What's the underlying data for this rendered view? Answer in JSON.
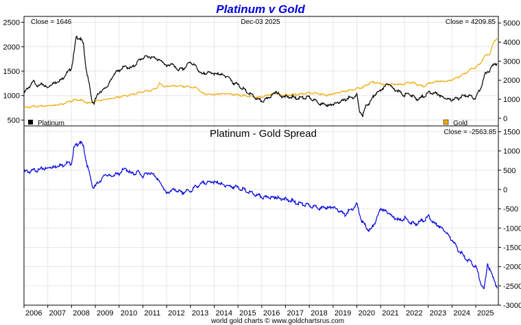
{
  "chart_data": [
    {
      "type": "line",
      "title": "Platinum v Gold",
      "date_label": "Dec-03  2025",
      "left_axis_ticks": [
        2500,
        2000,
        1500,
        1000,
        500
      ],
      "left_ylim": [
        380,
        2620
      ],
      "right_axis_ticks": [
        5000,
        4000,
        3000,
        2000,
        1000,
        0
      ],
      "right_ylim": [
        -400,
        5350
      ],
      "x_ticks": [
        "2006",
        "2007",
        "2008",
        "2009",
        "2010",
        "2011",
        "2012",
        "2013",
        "2014",
        "2015",
        "2016",
        "2017",
        "2018",
        "2019",
        "2020",
        "2021",
        "2022",
        "2023",
        "2024",
        "2025"
      ],
      "xlim": [
        2006.0,
        2025.95
      ],
      "series": [
        {
          "name": "Platinum",
          "axis": "left",
          "color": "#000000",
          "close_label": "Close = 1646",
          "x": [
            2006.0,
            2006.2,
            2006.4,
            2006.6,
            2006.8,
            2007.0,
            2007.2,
            2007.5,
            2007.8,
            2008.0,
            2008.1,
            2008.2,
            2008.35,
            2008.5,
            2008.6,
            2008.75,
            2008.85,
            2008.95,
            2009.0,
            2009.2,
            2009.5,
            2009.8,
            2010.0,
            2010.3,
            2010.5,
            2010.8,
            2011.0,
            2011.3,
            2011.6,
            2011.8,
            2012.0,
            2012.2,
            2012.5,
            2012.8,
            2013.0,
            2013.3,
            2013.5,
            2013.7,
            2014.0,
            2014.3,
            2014.6,
            2014.8,
            2015.0,
            2015.3,
            2015.6,
            2015.9,
            2016.0,
            2016.3,
            2016.6,
            2016.8,
            2017.0,
            2017.5,
            2018.0,
            2018.5,
            2018.8,
            2019.0,
            2019.3,
            2019.6,
            2019.8,
            2020.0,
            2020.1,
            2020.2,
            2020.25,
            2020.4,
            2020.6,
            2020.8,
            2021.0,
            2021.15,
            2021.3,
            2021.6,
            2021.8,
            2022.0,
            2022.2,
            2022.4,
            2022.6,
            2022.8,
            2023.0,
            2023.3,
            2023.6,
            2023.8,
            2024.0,
            2024.3,
            2024.6,
            2024.8,
            2025.0,
            2025.2,
            2025.4,
            2025.6,
            2025.75,
            2025.9
          ],
          "y": [
            1040,
            1180,
            1280,
            1200,
            1230,
            1160,
            1250,
            1300,
            1450,
            1580,
            1850,
            2200,
            2180,
            2050,
            1600,
            1200,
            900,
            850,
            930,
            1080,
            1180,
            1450,
            1520,
            1600,
            1550,
            1700,
            1780,
            1800,
            1750,
            1700,
            1600,
            1650,
            1520,
            1580,
            1700,
            1550,
            1420,
            1480,
            1450,
            1430,
            1380,
            1260,
            1220,
            1100,
            1000,
            900,
            880,
            960,
            1080,
            990,
            980,
            950,
            960,
            830,
            800,
            820,
            870,
            940,
            960,
            1000,
            700,
            640,
            600,
            800,
            900,
            1050,
            1100,
            1180,
            1250,
            1120,
            1080,
            1000,
            1050,
            960,
            930,
            980,
            1060,
            1050,
            980,
            930,
            920,
            950,
            1010,
            970,
            950,
            1150,
            1450,
            1530,
            1650,
            1646
          ]
        },
        {
          "name": "Gold",
          "axis": "right",
          "color": "#f0a800",
          "close_label": "Close = 4209.85",
          "x": [
            2006.0,
            2006.4,
            2006.8,
            2007.2,
            2007.6,
            2008.0,
            2008.3,
            2008.6,
            2008.8,
            2009.0,
            2009.5,
            2010.0,
            2010.5,
            2011.0,
            2011.3,
            2011.6,
            2011.7,
            2011.9,
            2012.2,
            2012.6,
            2013.0,
            2013.3,
            2013.5,
            2013.8,
            2014.0,
            2014.5,
            2015.0,
            2015.5,
            2015.9,
            2016.2,
            2016.6,
            2016.9,
            2017.2,
            2017.7,
            2018.0,
            2018.4,
            2018.7,
            2019.0,
            2019.5,
            2019.8,
            2020.0,
            2020.3,
            2020.6,
            2020.9,
            2021.2,
            2021.5,
            2021.8,
            2022.0,
            2022.2,
            2022.4,
            2022.8,
            2023.0,
            2023.4,
            2023.8,
            2024.0,
            2024.3,
            2024.6,
            2024.9,
            2025.0,
            2025.2,
            2025.4,
            2025.6,
            2025.75,
            2025.9
          ],
          "y": [
            550,
            620,
            640,
            680,
            750,
            920,
            980,
            850,
            780,
            900,
            1000,
            1120,
            1230,
            1400,
            1450,
            1600,
            1850,
            1650,
            1700,
            1680,
            1650,
            1580,
            1300,
            1250,
            1250,
            1300,
            1220,
            1150,
            1080,
            1200,
            1330,
            1200,
            1230,
            1280,
            1330,
            1300,
            1200,
            1280,
            1420,
            1500,
            1550,
            1650,
            1900,
            1850,
            1750,
            1800,
            1780,
            1800,
            1900,
            1850,
            1660,
            1820,
            1950,
            1950,
            2030,
            2180,
            2400,
            2650,
            2650,
            2900,
            3300,
            3400,
            4000,
            4209.85
          ]
        }
      ]
    },
    {
      "type": "line",
      "title": "Platinum  -  Gold Spread",
      "close_label": "Close = -2563.85",
      "right_axis_ticks": [
        1500,
        1000,
        500,
        0,
        -500,
        -1000,
        -1500,
        -2000,
        -2500,
        -3000
      ],
      "ylim": [
        -3000,
        1650
      ],
      "xlim": [
        2006.0,
        2025.95
      ],
      "series": [
        {
          "name": "Spread",
          "color": "#0000dd",
          "x": [
            2006.0,
            2006.5,
            2007.0,
            2007.5,
            2008.0,
            2008.1,
            2008.2,
            2008.35,
            2008.5,
            2008.6,
            2008.75,
            2008.9,
            2009.1,
            2009.4,
            2009.7,
            2010.0,
            2010.3,
            2010.5,
            2010.8,
            2011.0,
            2011.3,
            2011.6,
            2011.8,
            2012.0,
            2012.3,
            2012.6,
            2013.0,
            2013.3,
            2013.6,
            2014.0,
            2014.5,
            2015.0,
            2015.5,
            2016.0,
            2016.5,
            2017.0,
            2017.5,
            2018.0,
            2018.5,
            2019.0,
            2019.5,
            2020.0,
            2020.2,
            2020.4,
            2020.6,
            2020.8,
            2021.0,
            2021.2,
            2021.5,
            2021.8,
            2022.0,
            2022.4,
            2022.8,
            2023.0,
            2023.3,
            2023.6,
            2023.8,
            2024.0,
            2024.3,
            2024.6,
            2024.8,
            2025.0,
            2025.2,
            2025.35,
            2025.5,
            2025.6,
            2025.75,
            2025.9
          ],
          "y": [
            450,
            500,
            560,
            620,
            700,
            1050,
            1150,
            1250,
            1100,
            800,
            400,
            50,
            150,
            380,
            350,
            420,
            550,
            400,
            450,
            350,
            450,
            300,
            100,
            -100,
            0,
            -80,
            -30,
            100,
            180,
            200,
            100,
            50,
            -80,
            -200,
            -200,
            -250,
            -350,
            -420,
            -480,
            -460,
            -650,
            -400,
            -800,
            -1000,
            -1050,
            -800,
            -500,
            -550,
            -700,
            -800,
            -750,
            -900,
            -800,
            -700,
            -900,
            -1000,
            -1150,
            -1300,
            -1600,
            -1800,
            -1900,
            -2000,
            -2400,
            -2600,
            -1900,
            -2100,
            -2300,
            -2563.85
          ]
        }
      ]
    }
  ],
  "legend": {
    "platinum_label": "Platinum",
    "gold_label": "Gold"
  },
  "footer": "world gold charts © www.goldchartsrus.com",
  "colors": {
    "title": "#0000dd",
    "grid": "#e6e6e6",
    "frame": "#000000"
  }
}
